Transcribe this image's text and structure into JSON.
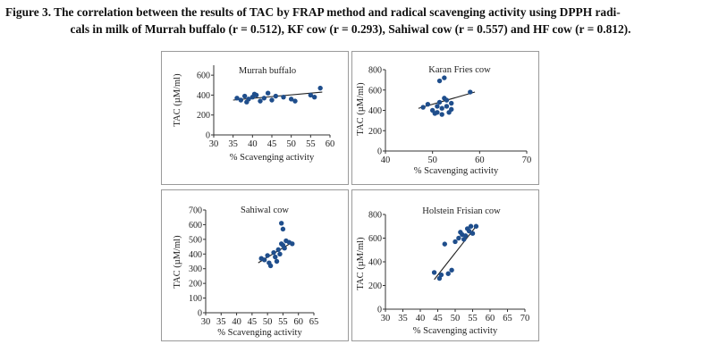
{
  "caption": {
    "line1": "Figure 3. The correlation between the results of TAC by FRAP method and radical scavenging activity using DPPH radi-",
    "line2": "cals in milk of Murrah buffalo (r = 0.512), KF cow (r = 0.293), Sahiwal cow (r = 0.557) and HF cow (r = 0.812)."
  },
  "colors": {
    "point": "#1f4e8c",
    "axis": "#333333",
    "border": "#9a9a9a"
  },
  "chart_data": [
    {
      "type": "scatter",
      "title": "Murrah buffalo",
      "xlabel": "% Scavenging activity",
      "ylabel": "TAC (µM/ml)",
      "xlim": [
        30,
        60
      ],
      "ylim": [
        0,
        700
      ],
      "xticks": [
        30,
        35,
        40,
        45,
        50,
        55,
        60
      ],
      "yticks": [
        0,
        200,
        400,
        600
      ],
      "x": [
        36,
        37,
        38,
        38.5,
        39,
        40,
        40.5,
        41,
        42,
        43,
        44,
        45,
        46,
        48,
        50,
        51,
        55,
        56,
        57.5
      ],
      "y": [
        370,
        350,
        390,
        330,
        360,
        380,
        410,
        400,
        340,
        370,
        420,
        350,
        390,
        380,
        360,
        340,
        400,
        380,
        470
      ],
      "trendline": {
        "x": [
          35,
          58
        ],
        "y": [
          350,
          430
        ]
      },
      "grid": false
    },
    {
      "type": "scatter",
      "title": "Karan Fries cow",
      "xlabel": "% Scavenging activity",
      "ylabel": "TAC (µM/ml)",
      "xlim": [
        40,
        70
      ],
      "ylim": [
        0,
        800
      ],
      "xticks": [
        40,
        50,
        60,
        70
      ],
      "yticks": [
        0,
        200,
        400,
        600,
        800
      ],
      "x": [
        48,
        49,
        50,
        50.5,
        51,
        51,
        51.5,
        52,
        52,
        52.5,
        53,
        53,
        53.5,
        54,
        54,
        51.5,
        52.5,
        58
      ],
      "y": [
        430,
        460,
        400,
        370,
        380,
        440,
        480,
        420,
        360,
        520,
        500,
        440,
        380,
        470,
        410,
        690,
        720,
        580
      ],
      "trendline": {
        "x": [
          47,
          59
        ],
        "y": [
          420,
          580
        ]
      },
      "grid": false
    },
    {
      "type": "scatter",
      "title": "Sahiwal cow",
      "xlabel": "% Scavenging activity",
      "ylabel": "TAC (µM/ml)",
      "xlim": [
        30,
        65
      ],
      "ylim": [
        0,
        700
      ],
      "xticks": [
        30,
        35,
        40,
        45,
        50,
        55,
        60,
        65
      ],
      "yticks": [
        0,
        100,
        200,
        300,
        400,
        500,
        600,
        700
      ],
      "x": [
        48,
        49,
        50,
        50.5,
        51,
        52,
        52.5,
        53,
        53.5,
        54,
        54.5,
        55,
        55.5,
        56,
        57,
        58,
        54.5,
        55
      ],
      "y": [
        370,
        360,
        390,
        340,
        320,
        410,
        380,
        350,
        430,
        400,
        470,
        460,
        440,
        490,
        480,
        470,
        610,
        570
      ],
      "trendline": {
        "x": [
          47,
          58
        ],
        "y": [
          340,
          480
        ]
      },
      "grid": false
    },
    {
      "type": "scatter",
      "title": "Holstein Frisian cow",
      "xlabel": "% Scavenging activity",
      "ylabel": "TAC (µM/ml)",
      "xlim": [
        30,
        70
      ],
      "ylim": [
        0,
        800
      ],
      "xticks": [
        30,
        35,
        40,
        45,
        50,
        55,
        60,
        65,
        70
      ],
      "yticks": [
        0,
        200,
        400,
        600,
        800
      ],
      "x": [
        44,
        45.5,
        46,
        47,
        48,
        49,
        50,
        51,
        51.5,
        52,
        52.5,
        53,
        53.5,
        54,
        54.5,
        55,
        56
      ],
      "y": [
        310,
        260,
        290,
        550,
        300,
        330,
        570,
        600,
        650,
        630,
        590,
        620,
        680,
        660,
        700,
        640,
        700
      ],
      "trendline": {
        "x": [
          44,
          56
        ],
        "y": [
          250,
          700
        ]
      },
      "grid": false
    }
  ]
}
